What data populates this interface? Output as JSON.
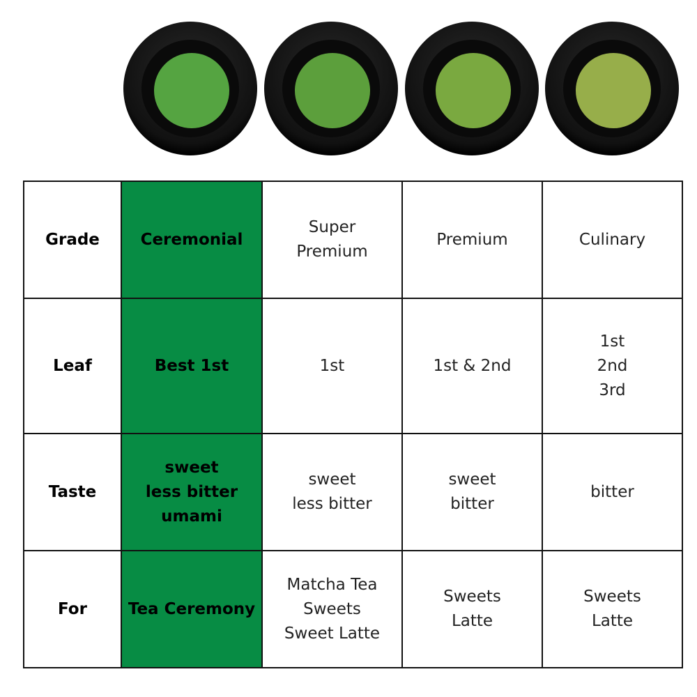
{
  "table": {
    "rows": [
      {
        "header": "Grade",
        "cells": [
          [
            "Ceremonial"
          ],
          [
            "Super",
            "Premium"
          ],
          [
            "Premium"
          ],
          [
            "Culinary"
          ]
        ]
      },
      {
        "header": "Leaf",
        "cells": [
          [
            "Best 1st"
          ],
          [
            "1st"
          ],
          [
            "1st & 2nd"
          ],
          [
            "1st",
            "2nd",
            "3rd"
          ]
        ]
      },
      {
        "header": "Taste",
        "cells": [
          [
            "sweet",
            "less bitter",
            "umami"
          ],
          [
            "sweet",
            "less bitter"
          ],
          [
            "sweet",
            "bitter"
          ],
          [
            "bitter"
          ]
        ]
      },
      {
        "header": "For",
        "cells": [
          [
            "Tea Ceremony"
          ],
          [
            "Matcha Tea",
            "Sweets",
            "Sweet Latte"
          ],
          [
            "Sweets",
            "Latte"
          ],
          [
            "Sweets",
            "Latte"
          ]
        ]
      }
    ]
  }
}
